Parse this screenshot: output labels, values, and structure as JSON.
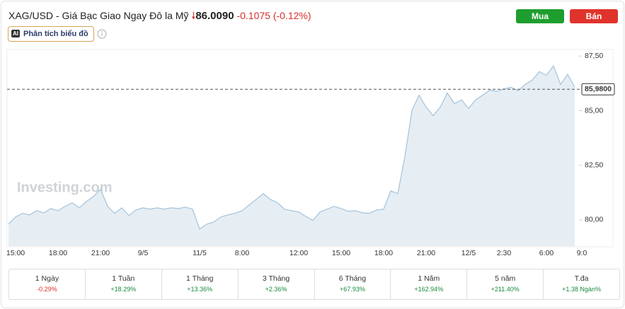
{
  "header": {
    "title": "XAG/USD - Giá Bạc Giao Ngay Đô la Mỹ",
    "price": "86.0090",
    "change": "-0.1075",
    "change_pct": "(-0.12%)",
    "ai_badge": "AI",
    "analysis_button": "Phân tích biểu đồ",
    "buy_button": "Mua",
    "sell_button": "Bán"
  },
  "chart_data": {
    "type": "area",
    "watermark": "Investing.com",
    "color": "#a9c6dd",
    "fill": "#e6eef4",
    "categories": [
      null,
      "15:00",
      null,
      null,
      null,
      null,
      null,
      "18:00",
      null,
      null,
      null,
      null,
      null,
      "21:00",
      null,
      null,
      null,
      null,
      null,
      "9/5",
      null,
      null,
      null,
      null,
      null,
      null,
      null,
      "11/5",
      null,
      null,
      null,
      null,
      null,
      "8:00",
      null,
      null,
      null,
      null,
      null,
      null,
      null,
      "12:00",
      null,
      null,
      null,
      null,
      null,
      "15:00",
      null,
      null,
      null,
      null,
      null,
      "18:00",
      null,
      null,
      null,
      null,
      null,
      "21:00",
      null,
      null,
      null,
      null,
      null,
      "12/5",
      null,
      null,
      null,
      null,
      "2:30",
      null,
      null,
      null,
      null,
      null,
      "6:00",
      null,
      null,
      null,
      null,
      "9:0"
    ],
    "values": [
      79.8,
      80.13,
      80.3,
      80.23,
      80.42,
      80.32,
      80.52,
      80.42,
      80.62,
      80.78,
      80.55,
      80.84,
      81.07,
      81.4,
      80.62,
      80.3,
      80.55,
      80.2,
      80.45,
      80.55,
      80.49,
      80.55,
      80.49,
      80.55,
      80.52,
      80.58,
      80.49,
      79.58,
      79.8,
      79.9,
      80.13,
      80.23,
      80.3,
      80.42,
      80.68,
      80.94,
      81.2,
      80.94,
      80.78,
      80.49,
      80.42,
      80.36,
      80.16,
      79.97,
      80.36,
      80.49,
      80.62,
      80.52,
      80.39,
      80.42,
      80.32,
      80.3,
      80.45,
      80.49,
      81.33,
      81.2,
      82.89,
      85.0,
      85.71,
      85.16,
      84.77,
      85.16,
      85.81,
      85.32,
      85.49,
      85.1,
      85.49,
      85.71,
      85.94,
      85.88,
      86.0,
      86.07,
      85.91,
      86.2,
      86.4,
      86.79,
      86.62,
      87.05,
      86.2,
      86.66,
      86.07,
      null
    ],
    "ylim": [
      78.8,
      87.8
    ],
    "yticks": [
      {
        "value": 87.5,
        "label": "87,50"
      },
      {
        "value": 85,
        "label": "85,00"
      },
      {
        "value": 82.5,
        "label": "82,50"
      },
      {
        "value": 80,
        "label": "80,00"
      }
    ],
    "current_price": {
      "value": 85.98,
      "label": "85,9800"
    }
  },
  "periods": [
    {
      "label": "1 Ngày",
      "change": "-0.29%"
    },
    {
      "label": "1 Tuần",
      "change": "+18.29%"
    },
    {
      "label": "1 Tháng",
      "change": "+13.36%"
    },
    {
      "label": "3 Tháng",
      "change": "+2.36%"
    },
    {
      "label": "6 Tháng",
      "change": "+67.93%"
    },
    {
      "label": "1 Năm",
      "change": "+162.94%"
    },
    {
      "label": "5 năm",
      "change": "+211.40%"
    },
    {
      "label": "T.đa",
      "change": "+1.38 Ngàn%"
    }
  ]
}
